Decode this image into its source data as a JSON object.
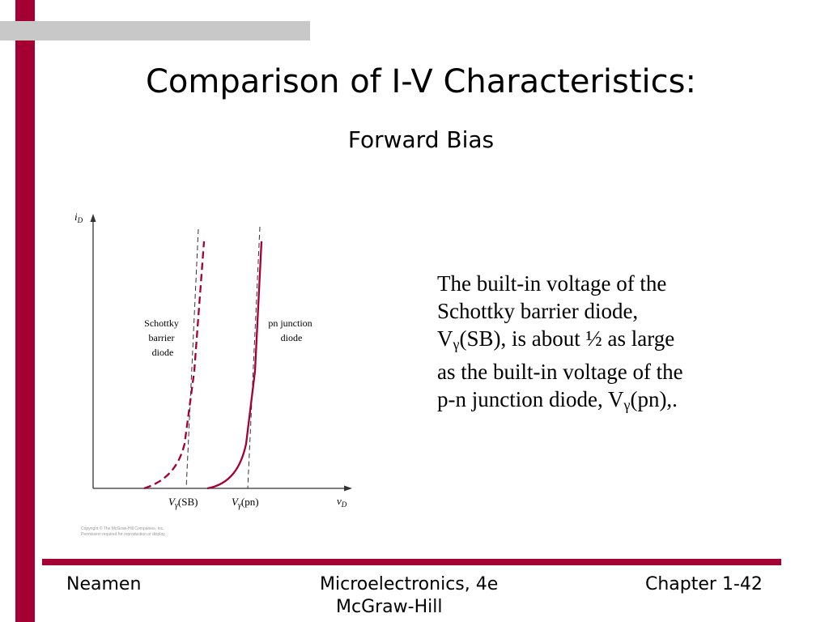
{
  "slide": {
    "title": "Comparison of I-V Characteristics:",
    "subtitle": "Forward Bias",
    "body": {
      "line1": "The built-in voltage of the",
      "line2": "Schottky barrier diode,",
      "line3_v": "V",
      "line3_gamma": "γ",
      "line3_rest": "(SB), is about ½ as large",
      "line4": "as the built-in voltage of the",
      "line5_pre": "p-n junction diode, V",
      "line5_gamma": "γ",
      "line5_rest": "(pn),."
    }
  },
  "figure": {
    "y_axis_label": "i",
    "y_axis_sub": "D",
    "x_axis_label": "v",
    "x_axis_sub": "D",
    "sb_tick": "V",
    "sb_tick_gamma": "γ",
    "sb_tick_rest": "(SB)",
    "pn_tick": "V",
    "pn_tick_gamma": "γ",
    "pn_tick_rest": "(pn)",
    "schottky_label": [
      "Schottky",
      "barrier",
      "diode"
    ],
    "pn_label": [
      "pn junction",
      "diode"
    ],
    "copyright_1": "Copyright © The McGraw-Hill Companies, Inc.",
    "copyright_2": "Permission required for reproduction or display.",
    "curve_color": "#a50034"
  },
  "footer": {
    "left": "Neamen",
    "center_line1": "Microelectronics, 4e",
    "center_line2": "McGraw-Hill",
    "right": "Chapter 1-42"
  },
  "colors": {
    "accent": "#a50034",
    "top_bar": "#c8c8c8"
  }
}
